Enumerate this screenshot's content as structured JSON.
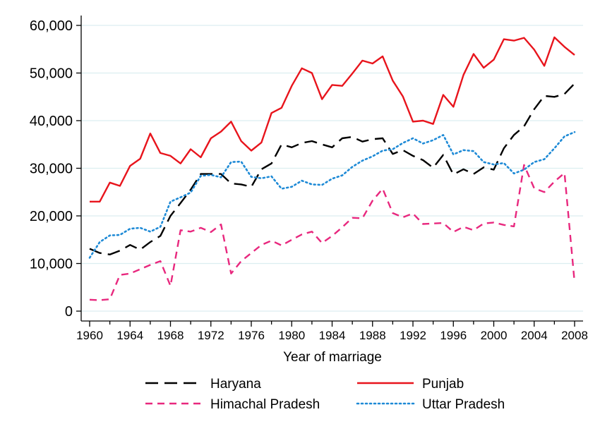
{
  "chart_data": {
    "type": "line",
    "title": "",
    "xlabel": "Year of marriage",
    "ylabel": "",
    "xlim": [
      1960,
      2008
    ],
    "ylim": [
      0,
      60000
    ],
    "x_ticks": [
      1960,
      1964,
      1968,
      1972,
      1976,
      1980,
      1984,
      1988,
      1992,
      1996,
      2000,
      2004,
      2008
    ],
    "y_ticks": [
      0,
      10000,
      20000,
      30000,
      40000,
      50000,
      60000
    ],
    "y_tick_labels": [
      "0",
      "10,000",
      "20,000",
      "30,000",
      "40,000",
      "50,000",
      "60,000"
    ],
    "grid": "horizontal",
    "legend_position": "bottom",
    "x": [
      1960,
      1961,
      1962,
      1963,
      1964,
      1965,
      1966,
      1967,
      1968,
      1969,
      1970,
      1971,
      1972,
      1973,
      1974,
      1975,
      1976,
      1977,
      1978,
      1979,
      1980,
      1981,
      1982,
      1983,
      1984,
      1985,
      1986,
      1987,
      1988,
      1989,
      1990,
      1991,
      1992,
      1993,
      1994,
      1995,
      1996,
      1997,
      1998,
      1999,
      2000,
      2001,
      2002,
      2003,
      2004,
      2005,
      2006,
      2007,
      2008
    ],
    "series": [
      {
        "name": "Haryana",
        "color": "#000000",
        "style": "longdash",
        "values": [
          13100,
          12200,
          11900,
          12700,
          13900,
          12900,
          14500,
          15800,
          20000,
          22700,
          25500,
          28800,
          28800,
          28800,
          26800,
          26600,
          26100,
          29800,
          31000,
          35000,
          34400,
          35300,
          35700,
          35000,
          34400,
          36300,
          36600,
          35600,
          36100,
          36300,
          33000,
          33800,
          32600,
          31700,
          30100,
          32800,
          28700,
          29800,
          28800,
          30200,
          29700,
          34200,
          37000,
          38800,
          42400,
          45200,
          45000,
          45600,
          47800
        ]
      },
      {
        "name": "Punjab",
        "color": "#e8141c",
        "style": "solid",
        "values": [
          23000,
          23000,
          27000,
          26300,
          30500,
          32000,
          37300,
          33200,
          32600,
          31000,
          34000,
          32300,
          36300,
          37700,
          39800,
          35700,
          33700,
          35400,
          41600,
          42700,
          47300,
          51000,
          50000,
          44500,
          47500,
          47300,
          49900,
          52600,
          52000,
          53500,
          48400,
          45100,
          39800,
          40000,
          39300,
          45400,
          42900,
          49600,
          54000,
          51100,
          52800,
          57100,
          56800,
          57400,
          54900,
          51500,
          57500,
          55500,
          53800
        ]
      },
      {
        "name": "Himachal Pradesh",
        "color": "#e8287e",
        "style": "dash",
        "values": [
          2400,
          2300,
          2500,
          7600,
          7900,
          8800,
          9700,
          10500,
          5300,
          17000,
          16700,
          17500,
          16600,
          18200,
          7900,
          10500,
          12200,
          13900,
          14800,
          13800,
          15000,
          16100,
          16700,
          14300,
          15800,
          17600,
          19600,
          19500,
          23200,
          25700,
          20600,
          19700,
          20500,
          18300,
          18400,
          18500,
          16600,
          17700,
          17000,
          18400,
          18600,
          18100,
          17800,
          30700,
          25800,
          25000,
          27200,
          29000,
          6000
        ]
      },
      {
        "name": "Uttar Pradesh",
        "color": "#1e8ad6",
        "style": "dot",
        "values": [
          11200,
          14500,
          15900,
          16000,
          17300,
          17500,
          16700,
          17700,
          23000,
          23900,
          24900,
          28400,
          28600,
          28100,
          31300,
          31400,
          28200,
          27900,
          28300,
          25700,
          26100,
          27400,
          26600,
          26500,
          27800,
          28500,
          30300,
          31600,
          32500,
          33700,
          34000,
          35300,
          36300,
          35200,
          35900,
          37000,
          32900,
          33800,
          33600,
          31300,
          30800,
          31100,
          28900,
          29700,
          31300,
          31900,
          34200,
          36700,
          37600
        ]
      }
    ]
  }
}
